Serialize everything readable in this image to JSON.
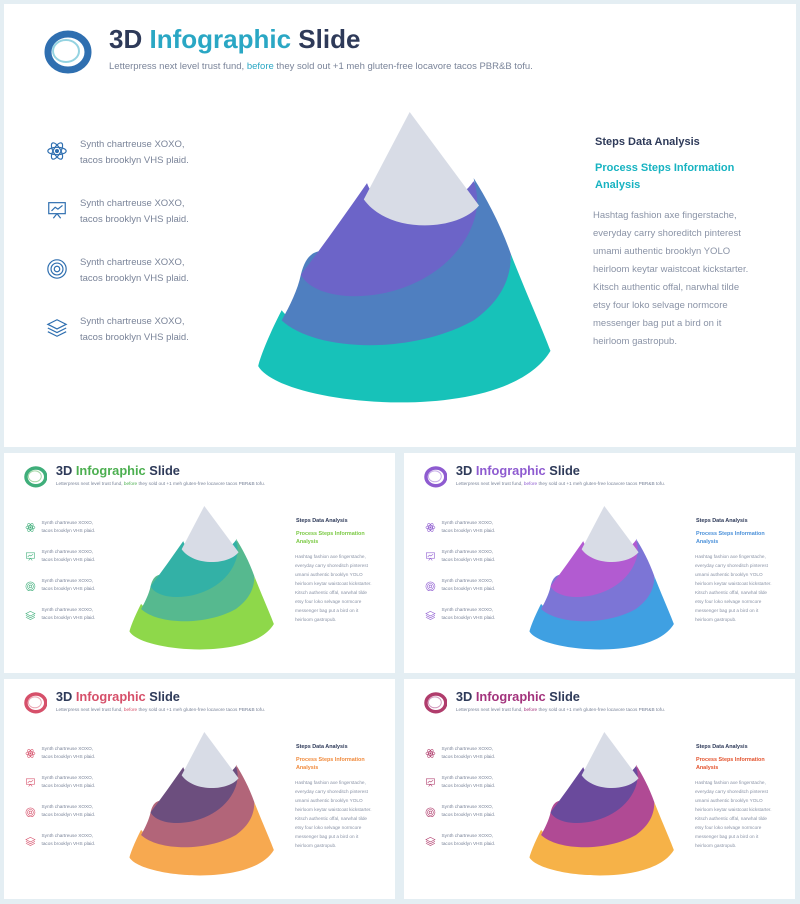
{
  "slide": {
    "title_part1": "3D",
    "title_part2": "Infographic",
    "title_part3": "Slide",
    "subtitle_before": "Letterpress next level trust fund,",
    "subtitle_highlight": "before",
    "subtitle_after": "they sold out +1 meh gluten-free locavore tacos PBR&B tofu.",
    "features": [
      {
        "icon": "atom-icon",
        "line1": "Synth chartreuse XOXO,",
        "line2": "tacos brooklyn VHS plaid."
      },
      {
        "icon": "presentation-board-icon",
        "line1": "Synth chartreuse XOXO,",
        "line2": "tacos brooklyn VHS plaid."
      },
      {
        "icon": "target-icon",
        "line1": "Synth chartreuse XOXO,",
        "line2": "tacos brooklyn VHS plaid."
      },
      {
        "icon": "layers-icon",
        "line1": "Synth chartreuse XOXO,",
        "line2": "tacos brooklyn VHS plaid."
      }
    ],
    "right_heading": "Steps Data Analysis",
    "right_sub_line1": "Process Steps Information",
    "right_sub_line2": "Analysis",
    "right_body": [
      "Hashtag fashion axe fingerstache,",
      "everyday carry shoreditch pinterest",
      "umami authentic brooklyn YOLO",
      "heirloom keytar waistcoat kickstarter.",
      "Kitsch authentic offal, narwhal tilde",
      "etsy four loko selvage normcore",
      "messenger bag put a bird on it",
      "heirloom gastropub."
    ]
  },
  "themes": [
    {
      "name": "blue-teal",
      "accent": "#2aa7c4",
      "sub": "#17b3c1",
      "band1": "#6c64c8",
      "band2": "#4f7fc0",
      "band3": "#17c2b9",
      "icon": "#2f6fb0"
    },
    {
      "name": "green",
      "accent": "#4caf50",
      "sub": "#7ac943",
      "band1": "#33b1a6",
      "band2": "#56b98f",
      "band3": "#8ed84a",
      "icon": "#3fae7a"
    },
    {
      "name": "purple-blue",
      "accent": "#8e5bd0",
      "sub": "#4a90d9",
      "band1": "#b25bd1",
      "band2": "#7c75d6",
      "band3": "#3fa0e2",
      "icon": "#8e5bd0"
    },
    {
      "name": "orange-rose",
      "accent": "#d6506a",
      "sub": "#f08a3c",
      "band1": "#6c4e7e",
      "band2": "#b26579",
      "band3": "#f7a950",
      "icon": "#d6506a"
    },
    {
      "name": "magenta-gold",
      "accent": "#a3337c",
      "sub": "#e3532e",
      "band1": "#6a4a9c",
      "band2": "#b04a94",
      "band3": "#f6b248",
      "icon": "#b03c6c"
    }
  ]
}
